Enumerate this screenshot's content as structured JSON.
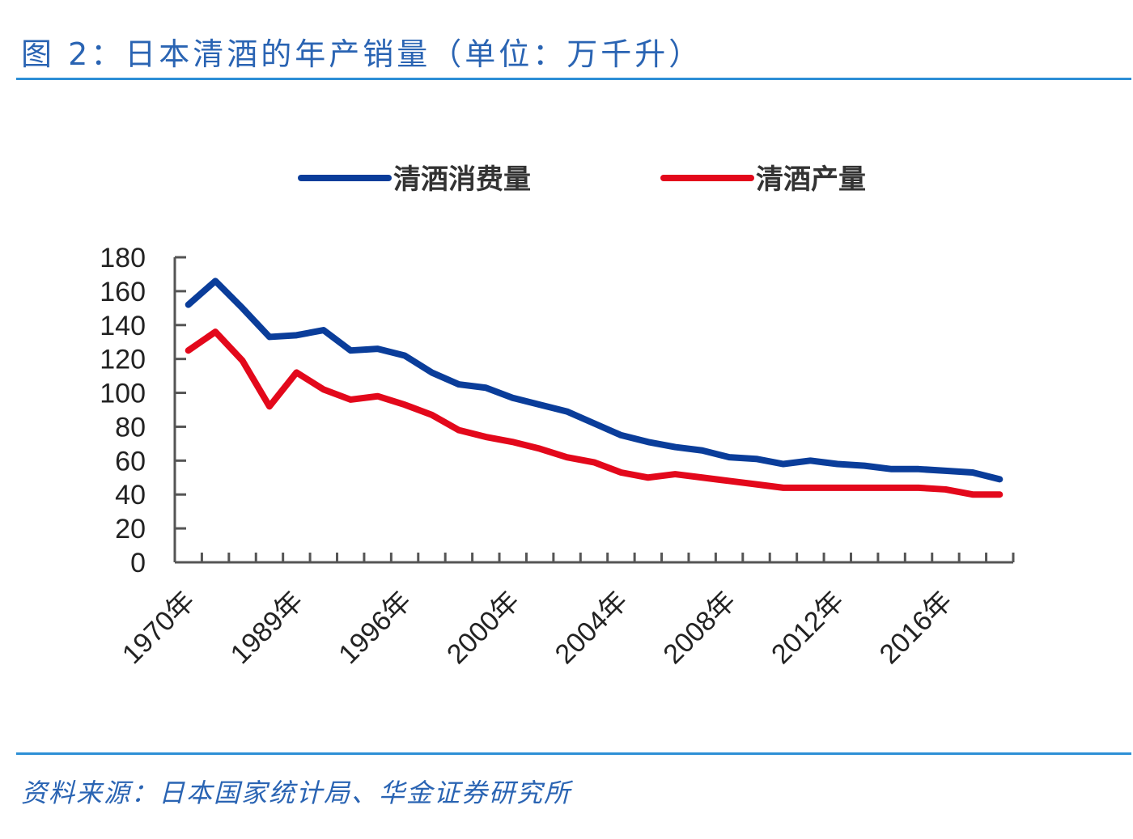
{
  "title": "图 2：日本清酒的年产销量（单位：万千升）",
  "source": "资料来源：日本国家统计局、华金证券研究所",
  "chart_data": {
    "type": "line",
    "title": "图 2：日本清酒的年产销量（单位：万千升）",
    "xlabel": "",
    "ylabel": "",
    "ylim": [
      0,
      180
    ],
    "yticks": [
      "0",
      "20",
      "40",
      "60",
      "80",
      "100",
      "120",
      "140",
      "160",
      "180"
    ],
    "categories": [
      "1970年",
      "",
      "",
      "",
      "1989年",
      "",
      "",
      "",
      "1996年",
      "",
      "",
      "",
      "2000年",
      "",
      "",
      "",
      "2004年",
      "",
      "",
      "",
      "2008年",
      "",
      "",
      "",
      "2012年",
      "",
      "",
      "",
      "2016年",
      "",
      ""
    ],
    "grid": false,
    "legend": "top",
    "series": [
      {
        "name": "清酒消费量",
        "color": "#0a3d9a",
        "values": [
          152,
          166,
          150,
          133,
          134,
          137,
          125,
          126,
          122,
          112,
          105,
          103,
          97,
          93,
          89,
          82,
          75,
          71,
          68,
          66,
          62,
          61,
          58,
          60,
          58,
          57,
          55,
          55,
          54,
          53,
          49
        ]
      },
      {
        "name": "清酒产量",
        "color": "#e3081b",
        "values": [
          125,
          136,
          119,
          92,
          112,
          102,
          96,
          98,
          93,
          87,
          78,
          74,
          71,
          67,
          62,
          59,
          53,
          50,
          52,
          50,
          48,
          46,
          44,
          44,
          44,
          44,
          44,
          44,
          43,
          40,
          40
        ]
      }
    ]
  }
}
